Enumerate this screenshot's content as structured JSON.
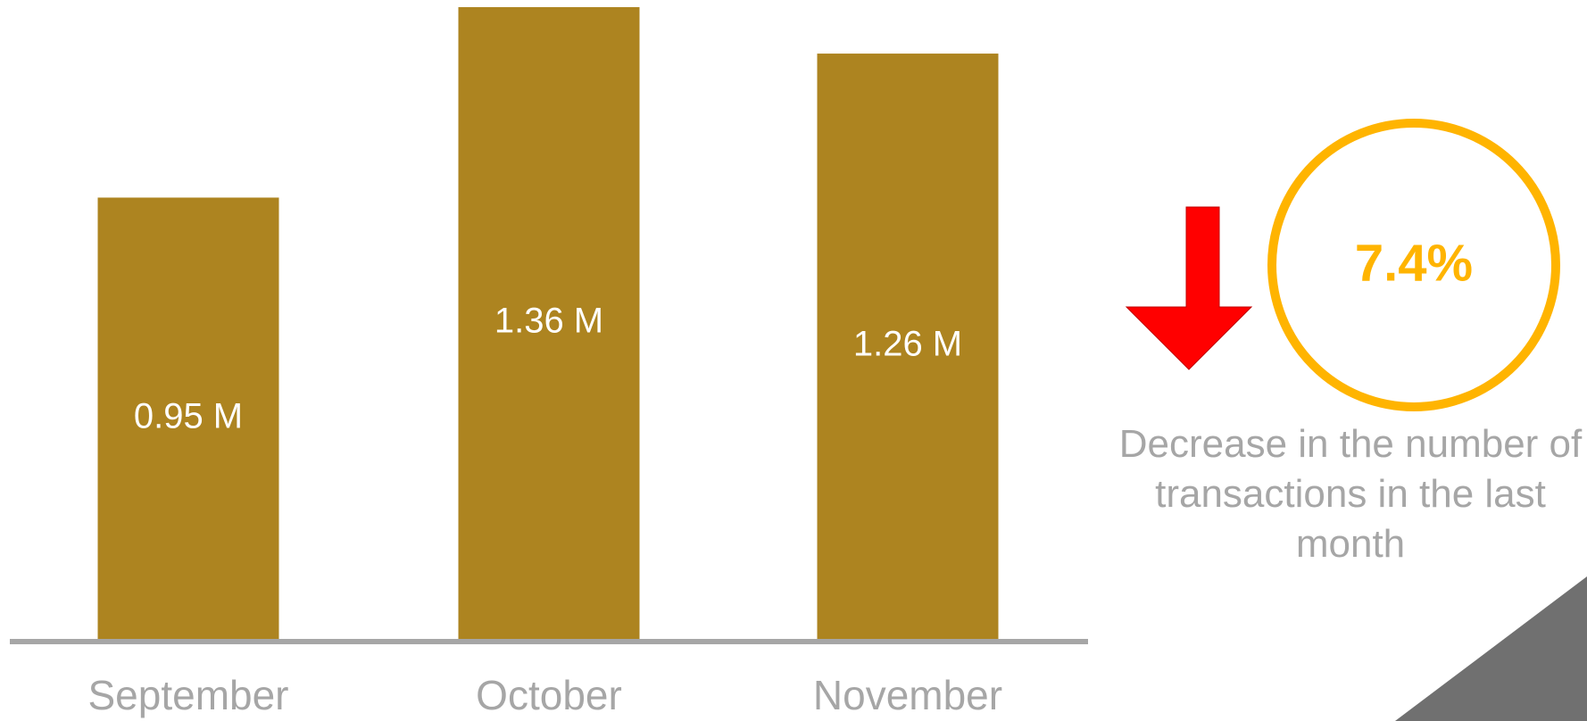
{
  "chart_data": {
    "type": "bar",
    "categories": [
      "September",
      "October",
      "November"
    ],
    "values": [
      0.95,
      1.36,
      1.26
    ],
    "value_labels": [
      "0.95 M",
      "1.36 M",
      "1.26 M"
    ],
    "color": "#ad8420"
  },
  "kpi": {
    "value": "7.4%",
    "caption": "Decrease in the number of transactions in the last month"
  }
}
